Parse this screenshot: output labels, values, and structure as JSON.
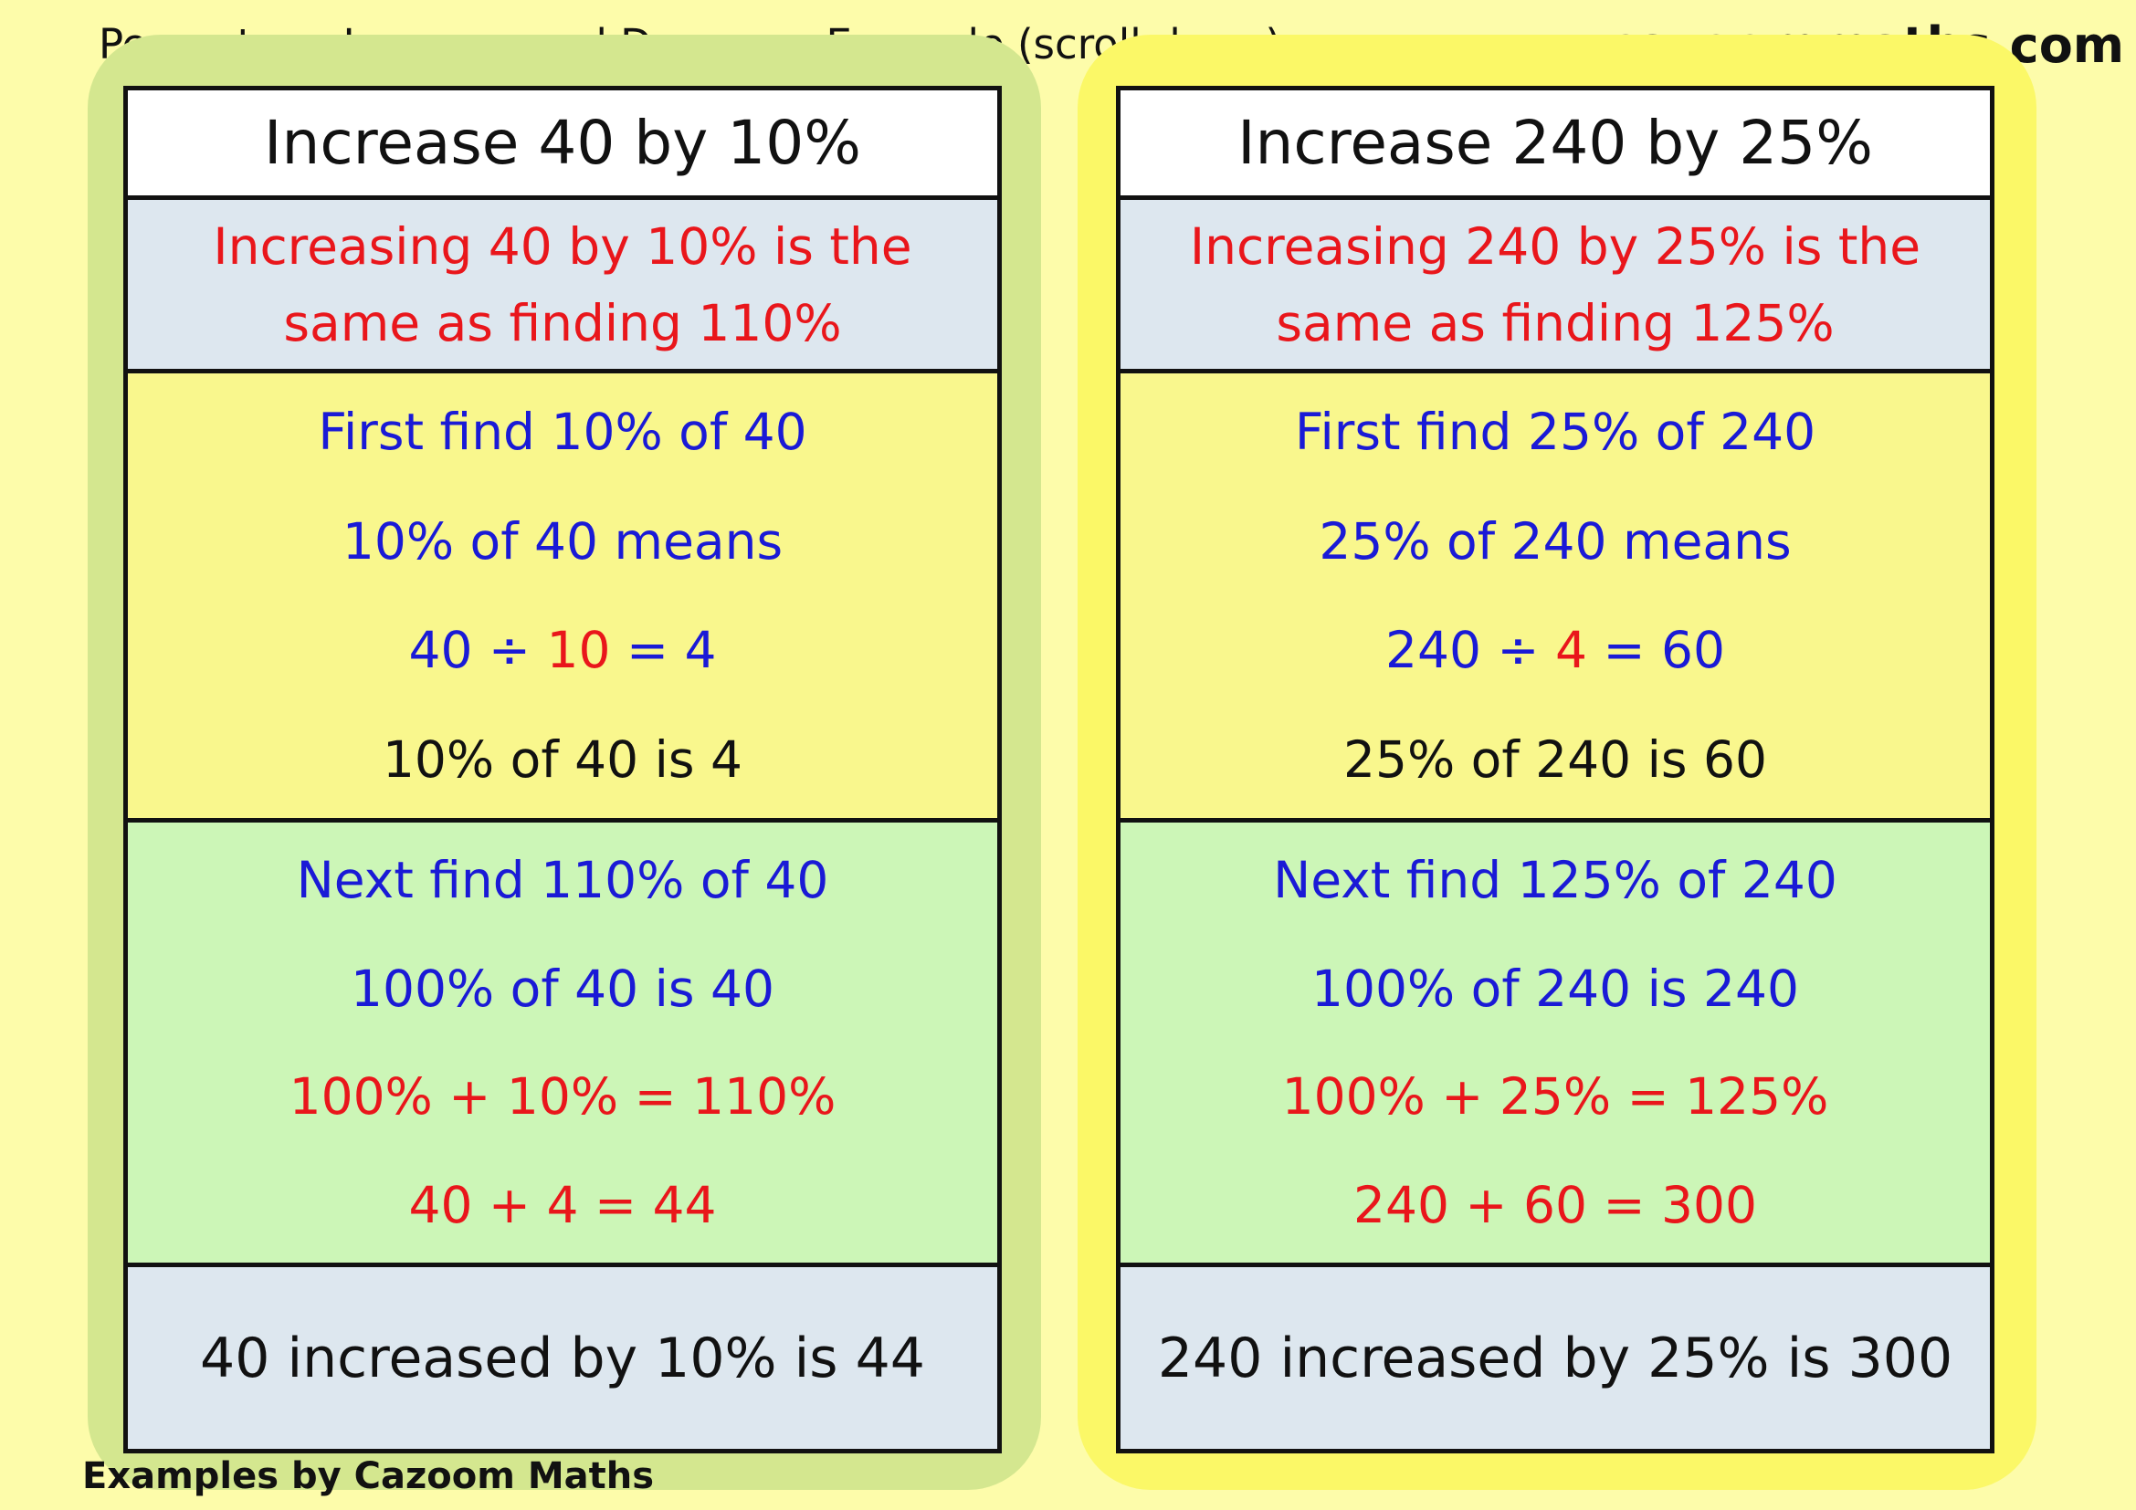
{
  "header": {
    "title": "Percentage Increase and Decrease Example (scroll down)",
    "website": "www.cazoommaths.com"
  },
  "footer": {
    "credit": "Examples by Cazoom Maths"
  },
  "colors": {
    "page_bg": "#fdfcaa",
    "left_panel_bg": "#d4e78f",
    "right_panel_bg": "#fbf867",
    "blue_text": "#1a1ad6",
    "red_text": "#e9161b"
  },
  "left": {
    "title": "Increase 40 by 10%",
    "note": "Increasing 40 by 10% is the same as finding 110%",
    "step1": {
      "heading": "First find 10% of 40",
      "means": "10% of 40 means",
      "calc_a": "40 ÷ ",
      "calc_b": "10",
      "calc_c": " = 4",
      "result": "10% of 40 is 4"
    },
    "step2": {
      "heading": "Next find 110% of 40",
      "base": "100% of 40 is 40",
      "percent_sum": "100% + 10% = 110%",
      "value_sum": "40 + 4 = 44"
    },
    "answer": "40 increased by 10% is 44"
  },
  "right": {
    "title": "Increase 240 by 25%",
    "note": "Increasing 240 by 25% is the same as finding 125%",
    "step1": {
      "heading": "First find 25% of 240",
      "means": "25% of 240 means",
      "calc_a": "240 ÷ ",
      "calc_b": "4",
      "calc_c": " = 60",
      "result": "25% of 240 is 60"
    },
    "step2": {
      "heading": "Next find 125% of 240",
      "base": "100% of 240 is 240",
      "percent_sum": "100% + 25% = 125%",
      "value_sum": "240 + 60 = 300"
    },
    "answer": "240 increased by 25% is 300"
  }
}
